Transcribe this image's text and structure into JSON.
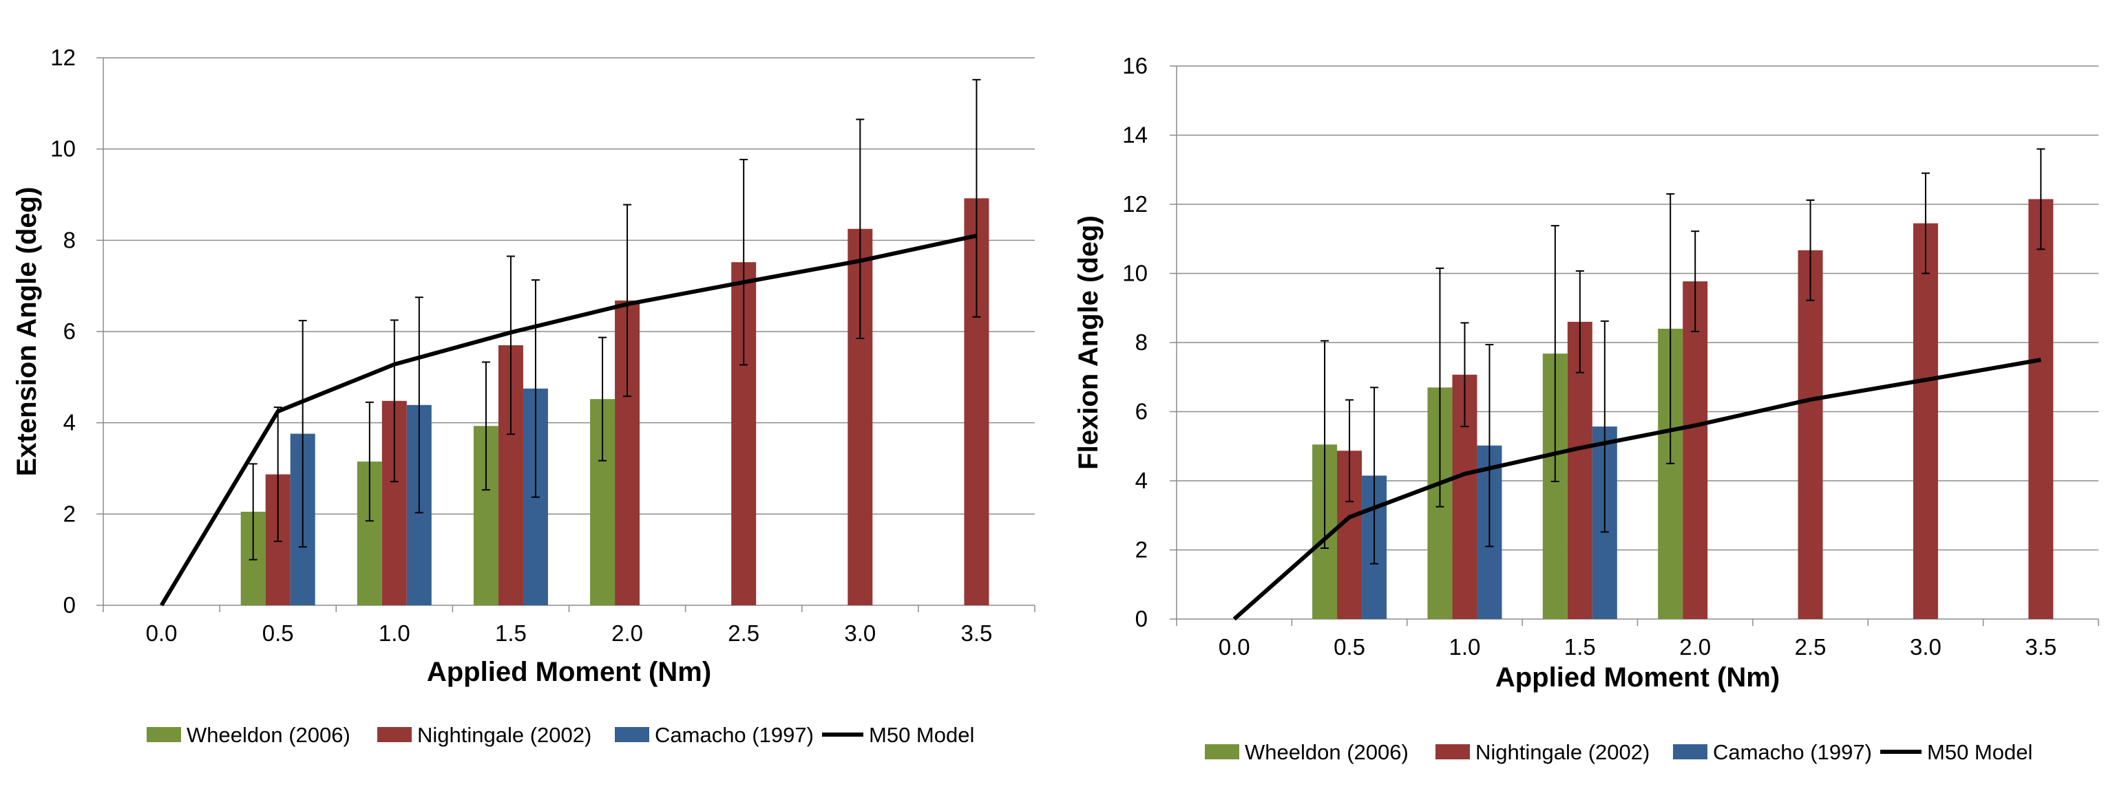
{
  "chart_data": [
    {
      "type": "bar",
      "title": "",
      "xlabel": "Applied Moment (Nm)",
      "ylabel": "Extension Angle (deg)",
      "categories": [
        "0.0",
        "0.5",
        "1.0",
        "1.5",
        "2.0",
        "2.5",
        "3.0",
        "3.5"
      ],
      "ylim": [
        0,
        12
      ],
      "yticks": [
        "0",
        "2",
        "4",
        "6",
        "8",
        "10",
        "12"
      ],
      "grid": true,
      "legend": "bottom",
      "series": [
        {
          "name": "Wheeldon (2006)",
          "kind": "bar",
          "color": "#76933c",
          "values": [
            null,
            2.05,
            3.15,
            3.93,
            4.52,
            null,
            null,
            null
          ],
          "error": [
            null,
            1.05,
            1.3,
            1.4,
            1.35,
            null,
            null,
            null
          ]
        },
        {
          "name": "Nightingale (2002)",
          "kind": "bar",
          "color": "#953735",
          "values": [
            null,
            2.87,
            4.48,
            5.7,
            6.68,
            7.52,
            8.25,
            8.92
          ],
          "error": [
            null,
            1.47,
            1.77,
            1.95,
            2.1,
            2.25,
            2.4,
            2.6
          ]
        },
        {
          "name": "Camacho (1997)",
          "kind": "bar",
          "color": "#366092",
          "values": [
            null,
            3.76,
            4.39,
            4.75,
            null,
            null,
            null,
            null
          ],
          "error": [
            null,
            2.48,
            2.36,
            2.38,
            null,
            null,
            null,
            null
          ]
        },
        {
          "name": "M50 Model",
          "kind": "line",
          "color": "#000000",
          "values": [
            0.0,
            4.25,
            5.28,
            5.98,
            6.6,
            7.08,
            7.55,
            8.1
          ]
        }
      ]
    },
    {
      "type": "bar",
      "title": "",
      "xlabel": "Applied Moment (Nm)",
      "ylabel": "Flexion Angle (deg)",
      "categories": [
        "0.0",
        "0.5",
        "1.0",
        "1.5",
        "2.0",
        "2.5",
        "3.0",
        "3.5"
      ],
      "ylim": [
        0,
        16
      ],
      "yticks": [
        "0",
        "2",
        "4",
        "6",
        "8",
        "10",
        "12",
        "14",
        "16"
      ],
      "grid": true,
      "legend": "bottom",
      "series": [
        {
          "name": "Wheeldon (2006)",
          "kind": "bar",
          "color": "#76933c",
          "values": [
            null,
            5.05,
            6.7,
            7.68,
            8.4,
            null,
            null,
            null
          ],
          "error": [
            null,
            3.0,
            3.45,
            3.7,
            3.9,
            null,
            null,
            null
          ]
        },
        {
          "name": "Nightingale (2002)",
          "kind": "bar",
          "color": "#953735",
          "values": [
            null,
            4.87,
            7.07,
            8.6,
            9.77,
            10.67,
            11.45,
            12.15
          ],
          "error": [
            null,
            1.47,
            1.5,
            1.47,
            1.45,
            1.45,
            1.45,
            1.45
          ]
        },
        {
          "name": "Camacho (1997)",
          "kind": "bar",
          "color": "#366092",
          "values": [
            null,
            4.15,
            5.02,
            5.57,
            null,
            null,
            null,
            null
          ],
          "error": [
            null,
            2.55,
            2.92,
            3.05,
            null,
            null,
            null,
            null
          ]
        },
        {
          "name": "M50 Model",
          "kind": "line",
          "color": "#000000",
          "values": [
            0.0,
            2.95,
            4.2,
            4.95,
            5.6,
            6.35,
            6.92,
            7.5
          ]
        }
      ]
    }
  ]
}
